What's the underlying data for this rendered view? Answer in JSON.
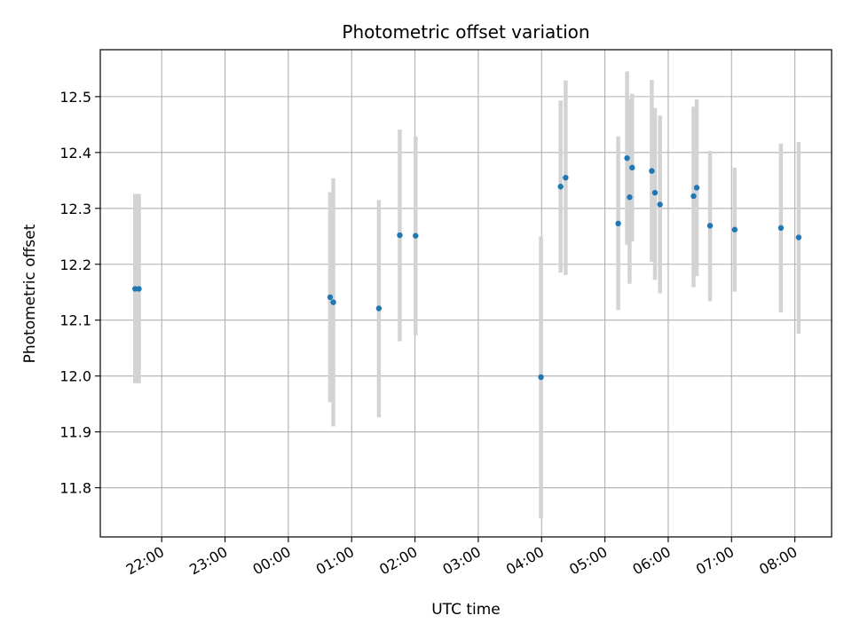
{
  "chart_data": {
    "type": "scatter",
    "title": "Photometric offset variation",
    "xlabel": "UTC time",
    "ylabel": "Photometric offset",
    "grid": true,
    "x_unit": "hours (UTC, next day past 24:00)",
    "xlim": [
      21.03,
      32.58
    ],
    "ylim": [
      11.712,
      12.584
    ],
    "x_ticks": [
      {
        "label": "22:00",
        "value": 22
      },
      {
        "label": "23:00",
        "value": 23
      },
      {
        "label": "00:00",
        "value": 24
      },
      {
        "label": "01:00",
        "value": 25
      },
      {
        "label": "02:00",
        "value": 26
      },
      {
        "label": "03:00",
        "value": 27
      },
      {
        "label": "04:00",
        "value": 28
      },
      {
        "label": "05:00",
        "value": 29
      },
      {
        "label": "06:00",
        "value": 30
      },
      {
        "label": "07:00",
        "value": 31
      },
      {
        "label": "08:00",
        "value": 32
      }
    ],
    "y_ticks": [
      {
        "label": "11.8",
        "value": 11.8
      },
      {
        "label": "11.9",
        "value": 11.9
      },
      {
        "label": "12.0",
        "value": 12.0
      },
      {
        "label": "12.1",
        "value": 12.1
      },
      {
        "label": "12.2",
        "value": 12.2
      },
      {
        "label": "12.3",
        "value": 12.3
      },
      {
        "label": "12.4",
        "value": 12.4
      },
      {
        "label": "12.5",
        "value": 12.5
      }
    ],
    "marker_color": "#1f77b4",
    "errorbar_color": "#d3d3d3",
    "points": [
      {
        "x": 21.58,
        "y": 12.156,
        "ylo": 11.987,
        "yhi": 12.326
      },
      {
        "x": 21.64,
        "y": 12.156,
        "ylo": 11.987,
        "yhi": 12.326
      },
      {
        "x": 24.66,
        "y": 12.141,
        "ylo": 11.953,
        "yhi": 12.329
      },
      {
        "x": 24.71,
        "y": 12.132,
        "ylo": 11.91,
        "yhi": 12.354
      },
      {
        "x": 25.43,
        "y": 12.121,
        "ylo": 11.926,
        "yhi": 12.315
      },
      {
        "x": 25.76,
        "y": 12.252,
        "ylo": 12.062,
        "yhi": 12.441
      },
      {
        "x": 26.01,
        "y": 12.251,
        "ylo": 12.073,
        "yhi": 12.429
      },
      {
        "x": 27.99,
        "y": 11.998,
        "ylo": 11.745,
        "yhi": 12.25
      },
      {
        "x": 28.3,
        "y": 12.339,
        "ylo": 12.185,
        "yhi": 12.493
      },
      {
        "x": 28.38,
        "y": 12.355,
        "ylo": 12.181,
        "yhi": 12.529
      },
      {
        "x": 29.21,
        "y": 12.273,
        "ylo": 12.118,
        "yhi": 12.429
      },
      {
        "x": 29.35,
        "y": 12.39,
        "ylo": 12.235,
        "yhi": 12.545
      },
      {
        "x": 29.39,
        "y": 12.32,
        "ylo": 12.165,
        "yhi": 12.496
      },
      {
        "x": 29.43,
        "y": 12.373,
        "ylo": 12.241,
        "yhi": 12.505
      },
      {
        "x": 29.74,
        "y": 12.367,
        "ylo": 12.204,
        "yhi": 12.53
      },
      {
        "x": 29.79,
        "y": 12.328,
        "ylo": 12.172,
        "yhi": 12.48
      },
      {
        "x": 29.87,
        "y": 12.307,
        "ylo": 12.148,
        "yhi": 12.466
      },
      {
        "x": 30.4,
        "y": 12.322,
        "ylo": 12.159,
        "yhi": 12.482
      },
      {
        "x": 30.45,
        "y": 12.337,
        "ylo": 12.179,
        "yhi": 12.495
      },
      {
        "x": 30.66,
        "y": 12.269,
        "ylo": 12.134,
        "yhi": 12.403
      },
      {
        "x": 31.05,
        "y": 12.262,
        "ylo": 12.151,
        "yhi": 12.373
      },
      {
        "x": 31.78,
        "y": 12.265,
        "ylo": 12.114,
        "yhi": 12.416
      },
      {
        "x": 32.06,
        "y": 12.248,
        "ylo": 12.076,
        "yhi": 12.419
      }
    ]
  }
}
